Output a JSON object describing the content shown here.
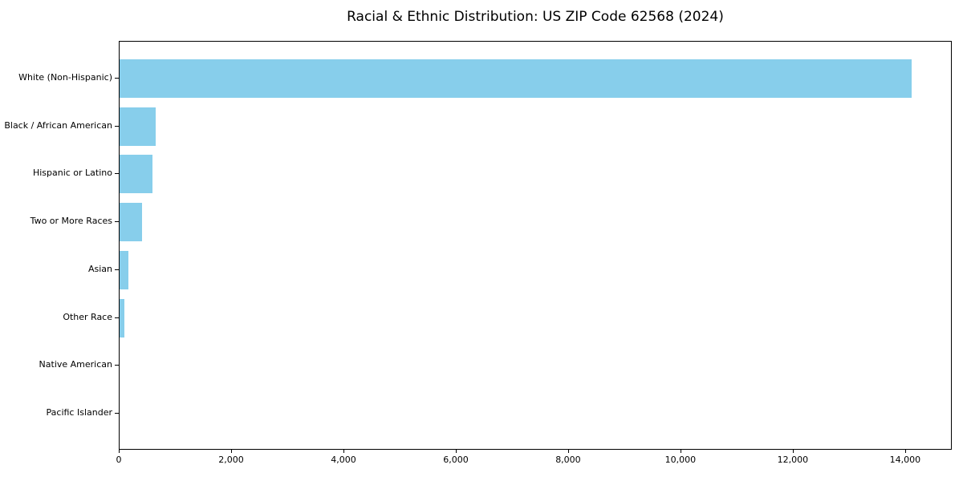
{
  "chart_data": {
    "type": "bar",
    "orientation": "horizontal",
    "title": "Racial & Ethnic Distribution: US ZIP Code 62568 (2024)",
    "categories": [
      "White (Non-Hispanic)",
      "Black / African American",
      "Hispanic or Latino",
      "Two or More Races",
      "Asian",
      "Other Race",
      "Native American",
      "Pacific Islander"
    ],
    "values": [
      14100,
      650,
      590,
      400,
      155,
      85,
      0,
      0
    ],
    "xlabel": "",
    "ylabel": "",
    "xlim": [
      0,
      14830
    ],
    "x_ticks": [
      0,
      2000,
      4000,
      6000,
      8000,
      10000,
      12000,
      14000
    ],
    "x_tick_labels": [
      "0",
      "2,000",
      "4,000",
      "6,000",
      "8,000",
      "10,000",
      "12,000",
      "14,000"
    ],
    "bar_color": "#87CEEB",
    "text_color": "#000000",
    "background_color": "#ffffff",
    "grid": false,
    "legend": "none"
  }
}
